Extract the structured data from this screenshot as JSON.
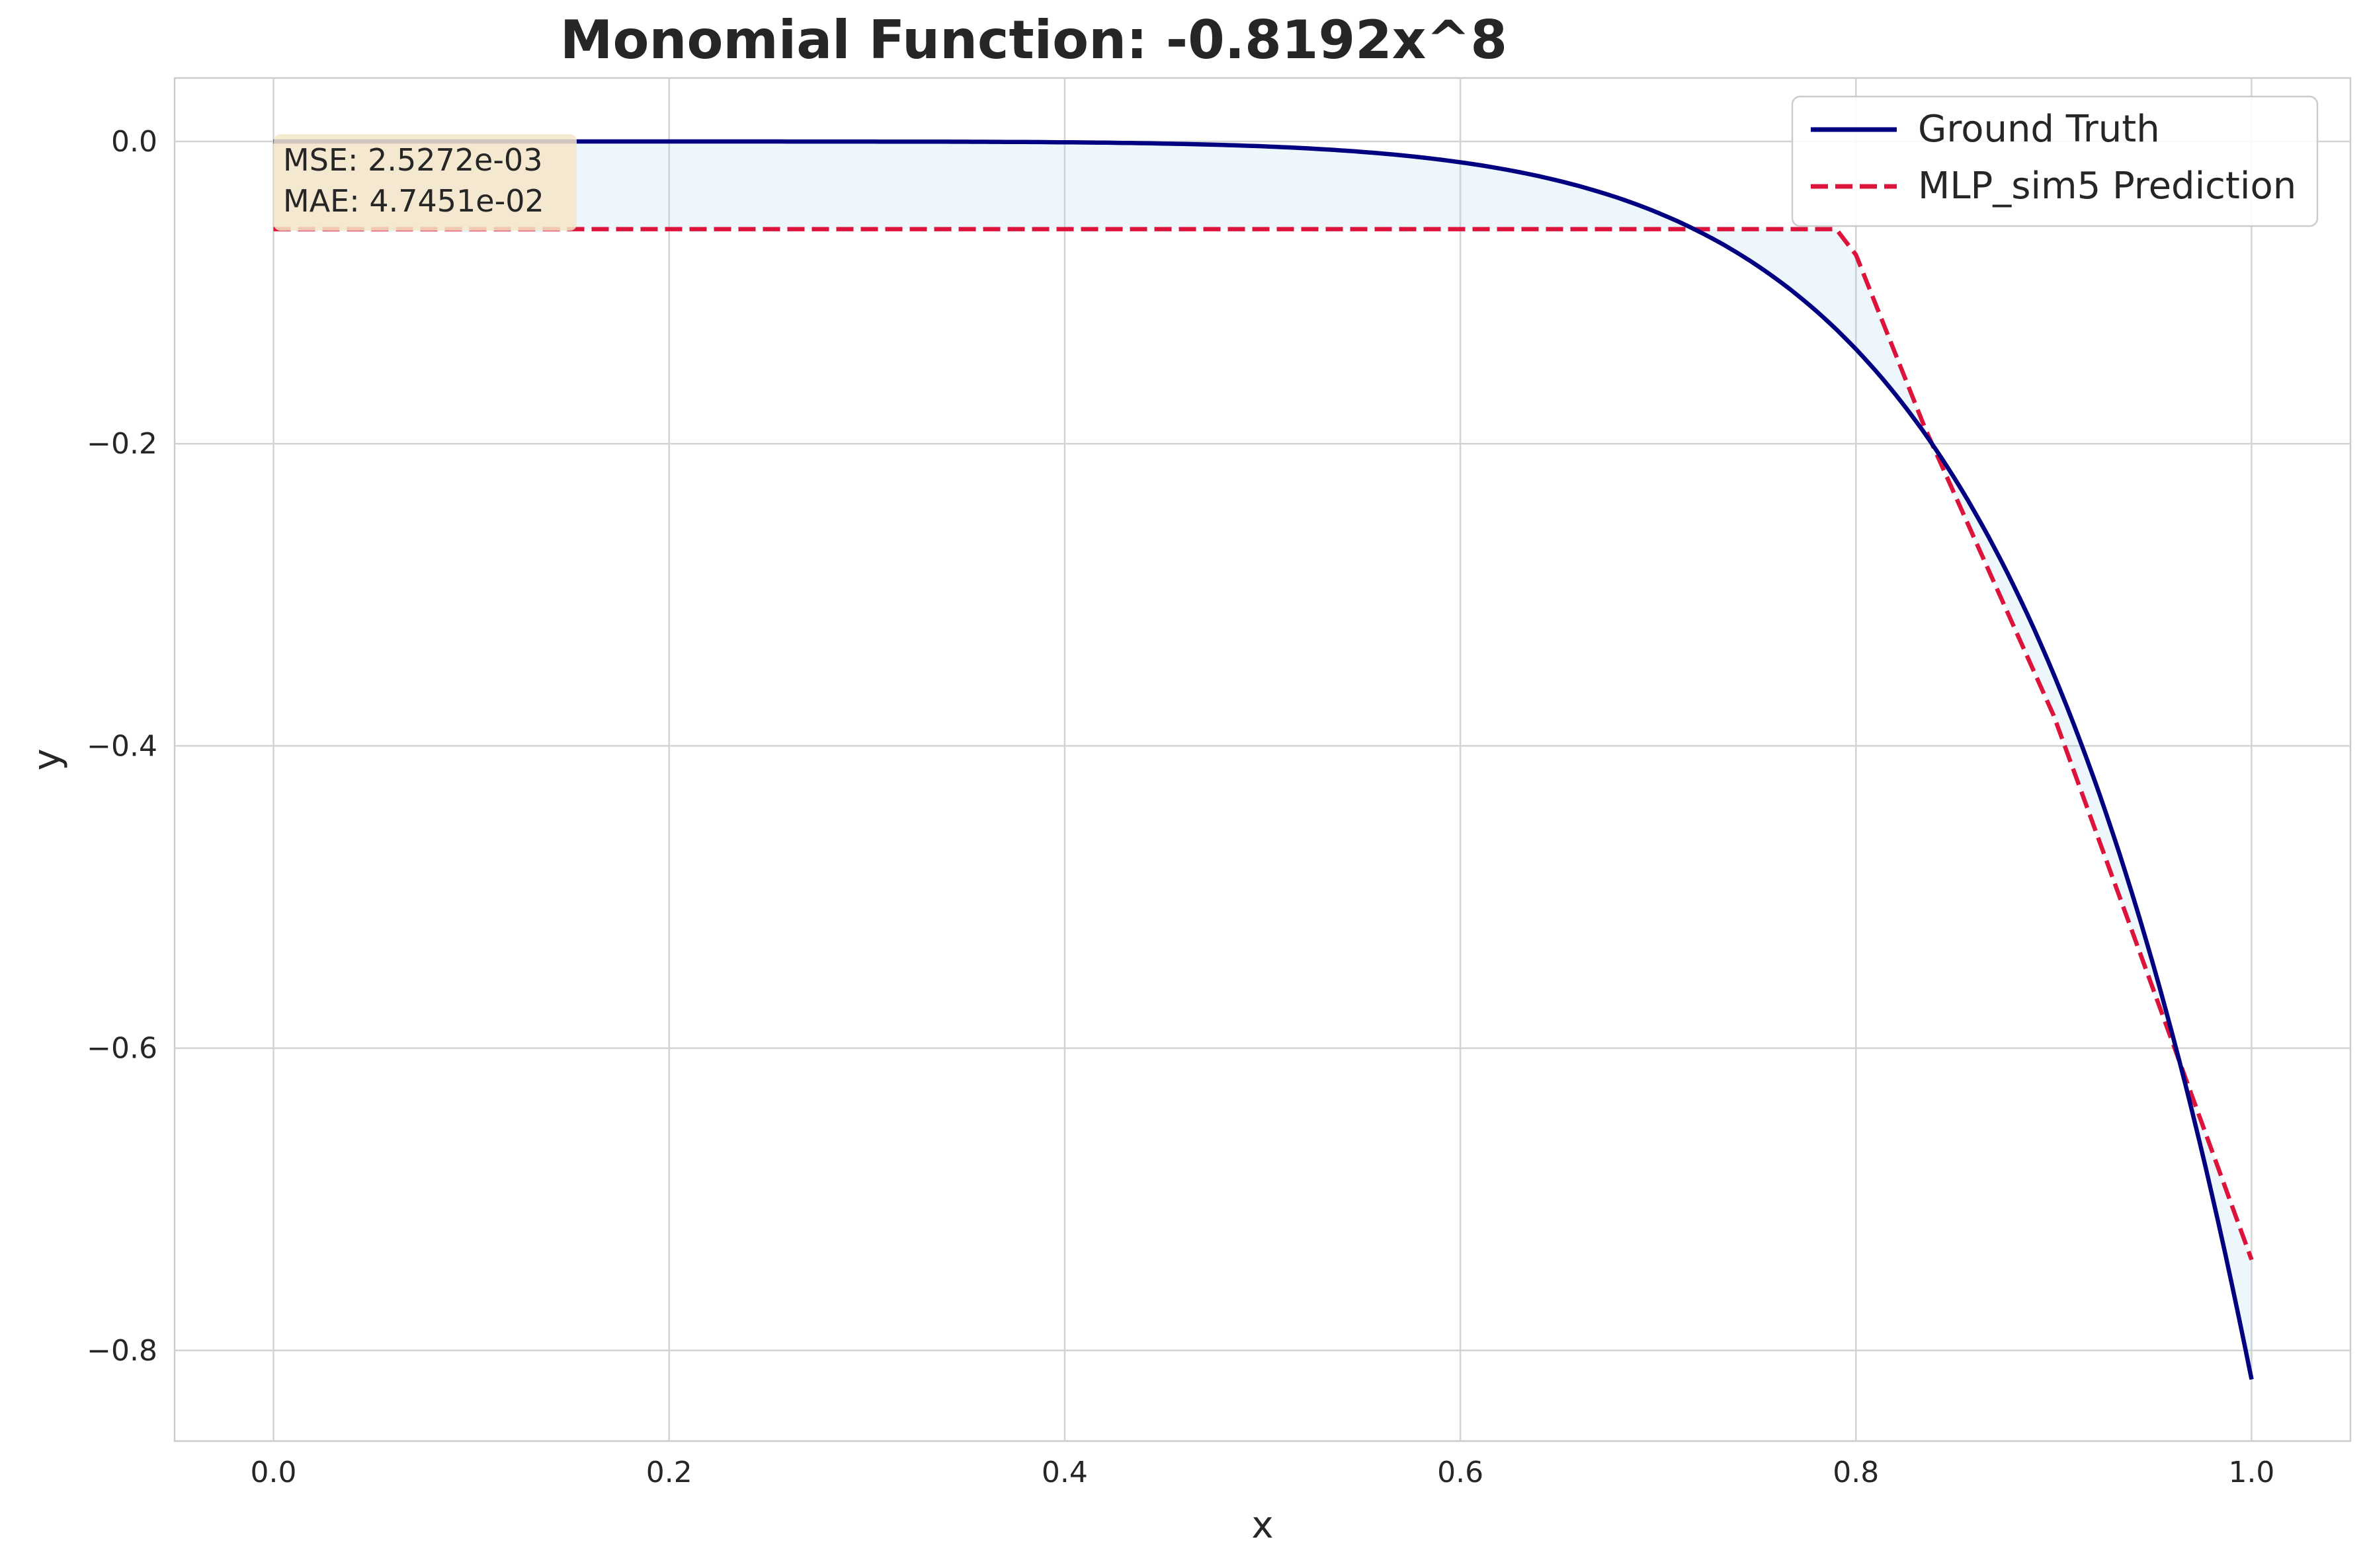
{
  "chart_data": {
    "type": "line",
    "title": "Monomial Function: -0.8192x^8",
    "xlabel": "x",
    "ylabel": "y",
    "xlim": [
      -0.05,
      1.05
    ],
    "ylim": [
      -0.86,
      0.042
    ],
    "grid": true,
    "legend_position": "top-right",
    "x_ticks": [
      0.0,
      0.2,
      0.4,
      0.6,
      0.8,
      1.0
    ],
    "x_tick_labels": [
      "0.0",
      "0.2",
      "0.4",
      "0.6",
      "0.8",
      "1.0"
    ],
    "y_ticks": [
      0.0,
      -0.2,
      -0.4,
      -0.6,
      -0.8
    ],
    "y_tick_labels": [
      "0.0",
      "−0.2",
      "−0.4",
      "−0.6",
      "−0.8"
    ],
    "series": [
      {
        "name": "Ground Truth",
        "style": "solid",
        "color": "#000080",
        "formula": "-0.8192*x^8",
        "x_range": [
          0,
          1
        ]
      },
      {
        "name": "MLP_sim5 Prediction",
        "style": "dashed",
        "color": "#dc143c",
        "points": [
          [
            0.0,
            -0.058
          ],
          [
            0.79,
            -0.058
          ],
          [
            0.8,
            -0.075
          ],
          [
            0.835,
            -0.19
          ],
          [
            0.9,
            -0.38
          ],
          [
            0.95,
            -0.56
          ],
          [
            1.0,
            -0.74
          ]
        ]
      }
    ],
    "fill_between": {
      "color": "#add8e6",
      "opacity": 0.22
    },
    "annotation": {
      "lines": [
        "MSE: 2.5272e-03",
        "MAE: 4.7451e-02"
      ],
      "background": "#f5e6c8"
    }
  }
}
